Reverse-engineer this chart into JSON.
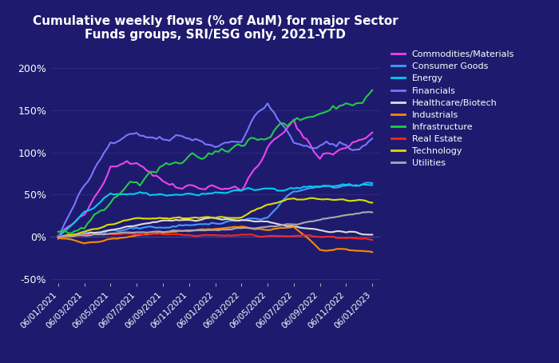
{
  "title": "Cumulative weekly flows (% of AuM) for major Sector\nFunds groups, SRI/ESG only, 2021-YTD",
  "background_color": "#1e1b6e",
  "text_color": "#ffffff",
  "ylim": [
    -55,
    225
  ],
  "yticks": [
    -50,
    0,
    50,
    100,
    150,
    200
  ],
  "xtick_labels": [
    "06/01/2021",
    "06/03/2021",
    "06/05/2021",
    "06/07/2021",
    "06/09/2021",
    "06/11/2021",
    "06/01/2022",
    "06/03/2022",
    "06/05/2022",
    "06/07/2022",
    "06/09/2022",
    "06/11/2022",
    "06/01/2023"
  ],
  "series": {
    "Commodities/Materials": {
      "color": "#ee44ee",
      "data": [
        0,
        25,
        85,
        90,
        65,
        60,
        60,
        55,
        105,
        135,
        95,
        105,
        125
      ]
    },
    "Consumer Goods": {
      "color": "#4499ff",
      "data": [
        0,
        3,
        6,
        10,
        12,
        14,
        16,
        20,
        22,
        55,
        58,
        60,
        65
      ]
    },
    "Energy": {
      "color": "#00ccee",
      "data": [
        0,
        28,
        48,
        52,
        50,
        50,
        52,
        55,
        57,
        58,
        60,
        61,
        62
      ]
    },
    "Financials": {
      "color": "#7777ff",
      "data": [
        0,
        60,
        110,
        120,
        115,
        118,
        108,
        118,
        160,
        110,
        105,
        108,
        110
      ]
    },
    "Healthcare/Biotech": {
      "color": "#dddddd",
      "data": [
        0,
        3,
        8,
        14,
        18,
        20,
        22,
        20,
        18,
        12,
        8,
        5,
        3
      ]
    },
    "Industrials": {
      "color": "#ff8800",
      "data": [
        0,
        -8,
        -3,
        2,
        5,
        8,
        10,
        12,
        8,
        12,
        -15,
        -15,
        -18
      ]
    },
    "Infrastructure": {
      "color": "#22cc44",
      "data": [
        0,
        12,
        42,
        65,
        82,
        90,
        100,
        112,
        122,
        135,
        148,
        158,
        168
      ]
    },
    "Real Estate": {
      "color": "#ff2222",
      "data": [
        0,
        2,
        3,
        4,
        3,
        2,
        2,
        2,
        1,
        2,
        0,
        -2,
        -3
      ]
    },
    "Technology": {
      "color": "#dddd00",
      "data": [
        0,
        5,
        15,
        22,
        22,
        22,
        22,
        24,
        38,
        45,
        45,
        43,
        42
      ]
    },
    "Utilities": {
      "color": "#aaaaaa",
      "data": [
        0,
        1,
        3,
        5,
        6,
        7,
        8,
        10,
        12,
        15,
        20,
        25,
        30
      ]
    }
  }
}
